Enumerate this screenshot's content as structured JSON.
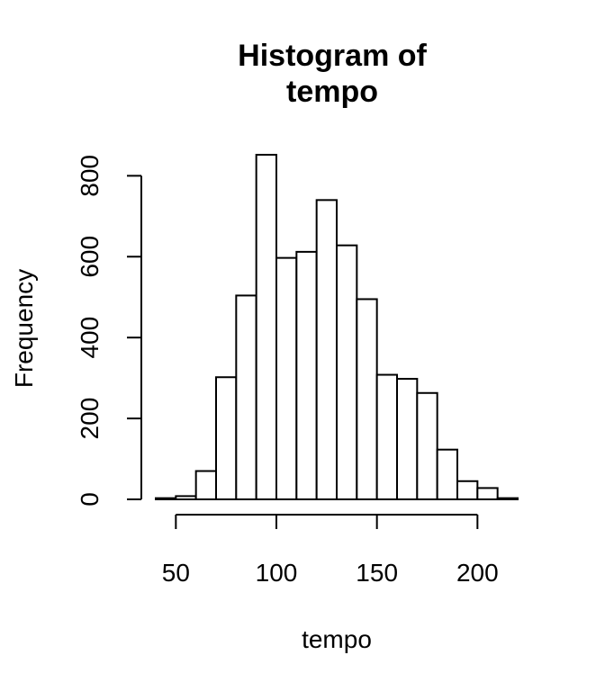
{
  "chart_data": {
    "type": "bar",
    "title": [
      "Histogram of",
      "tempo"
    ],
    "xlabel": "tempo",
    "ylabel": "Frequency",
    "bin_edges": [
      40,
      50,
      60,
      70,
      80,
      90,
      100,
      110,
      120,
      130,
      140,
      150,
      160,
      170,
      180,
      190,
      200,
      210,
      220
    ],
    "values": [
      3,
      8,
      70,
      302,
      504,
      852,
      597,
      612,
      740,
      628,
      495,
      308,
      298,
      263,
      123,
      45,
      28,
      3
    ],
    "xlim": [
      40,
      220
    ],
    "ylim": [
      0,
      852
    ],
    "x_ticks": [
      50,
      100,
      150,
      200
    ],
    "y_ticks": [
      0,
      200,
      400,
      600,
      800
    ],
    "grid": false,
    "legend": "none"
  }
}
